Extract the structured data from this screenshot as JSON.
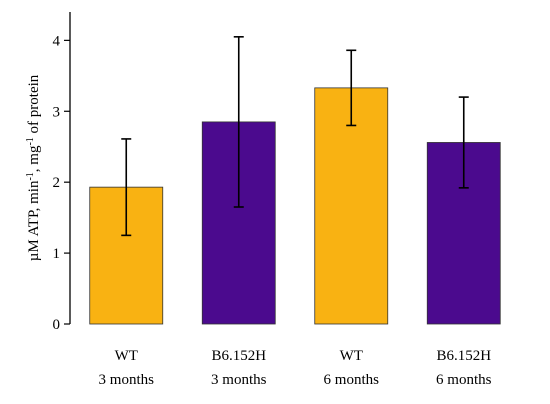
{
  "chart_data": {
    "type": "bar",
    "categories": [
      {
        "line1": "WT",
        "line2": "3 months"
      },
      {
        "line1": "B6.152H",
        "line2": "3 months"
      },
      {
        "line1": "WT",
        "line2": "6 months"
      },
      {
        "line1": "B6.152H",
        "line2": "6 months"
      }
    ],
    "values": [
      1.93,
      2.85,
      3.33,
      2.56
    ],
    "error_low": [
      1.25,
      1.65,
      2.8,
      1.92
    ],
    "error_high": [
      2.61,
      4.05,
      3.86,
      3.2
    ],
    "bar_colors": [
      "#F9B212",
      "#4B0A8E",
      "#F9B212",
      "#4B0A8E"
    ],
    "ylabel_parts": {
      "a": "µM ATP, min",
      "sup1": "-1",
      "b": ", mg",
      "sup2": "-1",
      "c": " of protein"
    },
    "ylim": [
      0,
      4.4
    ],
    "yticks": [
      0,
      1,
      2,
      3,
      4
    ],
    "grid": false,
    "legend": "none"
  }
}
